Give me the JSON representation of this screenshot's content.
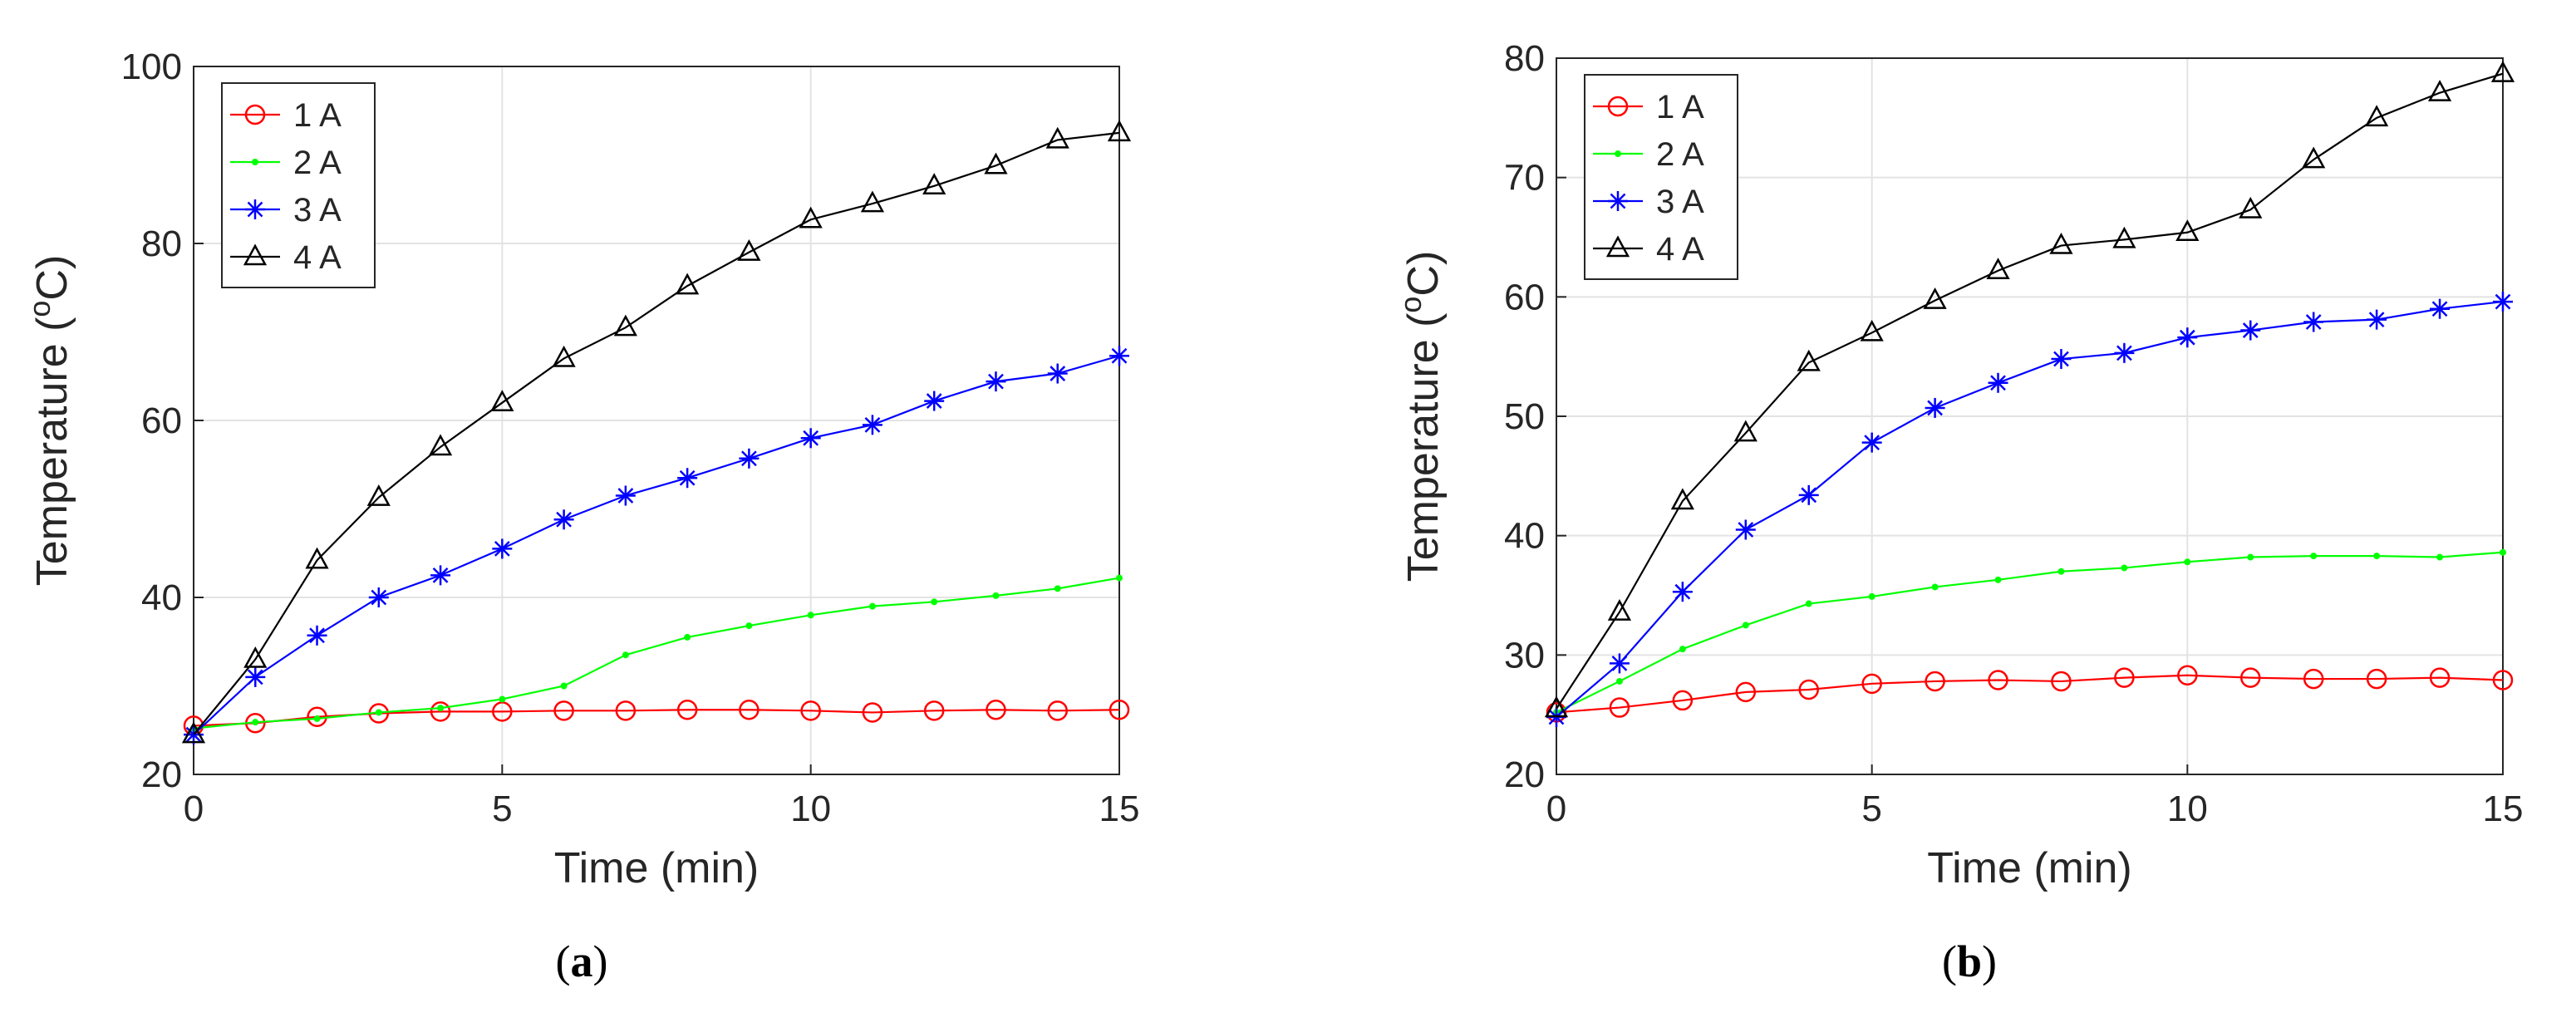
{
  "chart_data": [
    {
      "type": "line",
      "caption": "(a)",
      "caption_letter": "a",
      "xlabel": "Time (min)",
      "ylabel": "Temperature (",
      "ylabel_sup": "o",
      "ylabel_unit": "C)",
      "xlim": [
        0,
        15
      ],
      "ylim": [
        20,
        100
      ],
      "xticks": [
        0,
        5,
        10,
        15
      ],
      "yticks": [
        20,
        40,
        60,
        80,
        100
      ],
      "grid": true,
      "legend_position": "top-left",
      "x": [
        0,
        1,
        2,
        3,
        4,
        5,
        6,
        7,
        8,
        9,
        10,
        11,
        12,
        13,
        14,
        15
      ],
      "series": [
        {
          "name": "1 A",
          "color": "#ff0000",
          "marker": "circle",
          "values": [
            25.5,
            25.8,
            26.5,
            26.9,
            27.1,
            27.1,
            27.2,
            27.2,
            27.3,
            27.3,
            27.2,
            27.0,
            27.2,
            27.3,
            27.2,
            27.3
          ]
        },
        {
          "name": "2 A",
          "color": "#00ff00",
          "marker": "dot",
          "values": [
            25.2,
            25.9,
            26.3,
            27.0,
            27.5,
            28.5,
            30.0,
            33.5,
            35.5,
            36.8,
            38.0,
            39.0,
            39.5,
            40.2,
            41.0,
            42.2
          ]
        },
        {
          "name": "3 A",
          "color": "#0000ff",
          "marker": "asterisk",
          "values": [
            24.5,
            31.0,
            35.7,
            40.0,
            42.5,
            45.5,
            48.8,
            51.5,
            53.5,
            55.7,
            58.0,
            59.5,
            62.2,
            64.4,
            65.3,
            67.3
          ]
        },
        {
          "name": "4 A",
          "color": "#000000",
          "marker": "triangle",
          "values": [
            24.5,
            33.0,
            44.2,
            51.3,
            57.0,
            62.0,
            67.0,
            70.5,
            75.2,
            79.0,
            82.7,
            84.5,
            86.5,
            88.8,
            91.7,
            92.5
          ]
        }
      ]
    },
    {
      "type": "line",
      "caption": "(b)",
      "caption_letter": "b",
      "xlabel": "Time (min)",
      "ylabel": "Temperature (",
      "ylabel_sup": "o",
      "ylabel_unit": "C)",
      "xlim": [
        0,
        15
      ],
      "ylim": [
        20,
        80
      ],
      "xticks": [
        0,
        5,
        10,
        15
      ],
      "yticks": [
        20,
        30,
        40,
        50,
        60,
        70,
        80
      ],
      "grid": true,
      "legend_position": "top-left",
      "x": [
        0,
        1,
        2,
        3,
        4,
        5,
        6,
        7,
        8,
        9,
        10,
        11,
        12,
        13,
        14,
        15
      ],
      "series": [
        {
          "name": "1 A",
          "color": "#ff0000",
          "marker": "circle",
          "values": [
            25.2,
            25.6,
            26.2,
            26.9,
            27.1,
            27.6,
            27.8,
            27.9,
            27.8,
            28.1,
            28.3,
            28.1,
            28.0,
            28.0,
            28.1,
            27.9
          ]
        },
        {
          "name": "2 A",
          "color": "#00ff00",
          "marker": "dot",
          "values": [
            25.2,
            27.8,
            30.5,
            32.5,
            34.3,
            34.9,
            35.7,
            36.3,
            37.0,
            37.3,
            37.8,
            38.2,
            38.3,
            38.3,
            38.2,
            38.6
          ]
        },
        {
          "name": "3 A",
          "color": "#0000ff",
          "marker": "asterisk",
          "values": [
            24.8,
            29.3,
            35.3,
            40.5,
            43.4,
            47.8,
            50.7,
            52.8,
            54.8,
            55.3,
            56.6,
            57.2,
            57.9,
            58.1,
            59.0,
            59.6
          ]
        },
        {
          "name": "4 A",
          "color": "#000000",
          "marker": "triangle",
          "values": [
            25.5,
            33.6,
            42.9,
            48.6,
            54.5,
            57.0,
            59.7,
            62.2,
            64.3,
            64.8,
            65.4,
            67.3,
            71.5,
            75.0,
            77.1,
            78.7
          ]
        }
      ]
    }
  ]
}
